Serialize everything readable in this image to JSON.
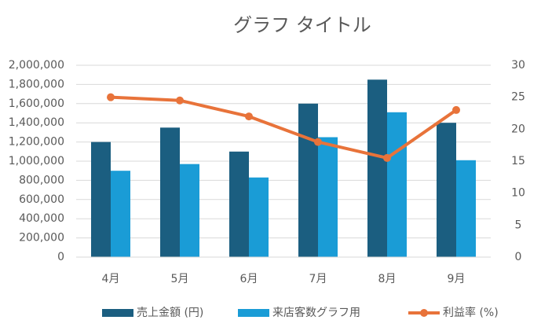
{
  "chart_data": {
    "type": "bar-line",
    "title": "グラフ タイトル",
    "categories": [
      "4月",
      "5月",
      "6月",
      "7月",
      "8月",
      "9月"
    ],
    "series": [
      {
        "name": "売上金額 (円)",
        "type": "bar",
        "color": "#1b5e80",
        "values": [
          1200000,
          1350000,
          1100000,
          1600000,
          1850000,
          1400000
        ]
      },
      {
        "name": "来店客数グラフ用",
        "type": "bar",
        "color": "#1a9cd6",
        "values": [
          900000,
          970000,
          830000,
          1250000,
          1510000,
          1010000
        ]
      },
      {
        "name": "利益率 (%)",
        "type": "line",
        "axis": "y2",
        "color": "#e8733a",
        "values": [
          25,
          24.5,
          22,
          18,
          15.5,
          23
        ]
      }
    ],
    "ylim": [
      0,
      2000000
    ],
    "yticks": [
      0,
      {
        "value": 200000,
        "label": "200,000"
      },
      {
        "value": 400000,
        "label": "400,000"
      },
      {
        "value": 600000,
        "label": "600,000"
      },
      {
        "value": 800000,
        "label": "800,000"
      },
      {
        "value": 1000000,
        "label": "1,000,000"
      },
      {
        "value": 1200000,
        "label": "1,200,000"
      },
      {
        "value": 1400000,
        "label": "1,400,000"
      },
      {
        "value": 1600000,
        "label": "1,600,000"
      },
      {
        "value": 1800000,
        "label": "1,800,000"
      },
      {
        "value": 2000000,
        "label": "2,000,000"
      }
    ],
    "y2lim": [
      0,
      30
    ],
    "y2ticks": [
      0,
      5,
      10,
      15,
      20,
      25,
      30
    ],
    "grid": true,
    "legend": "bottom"
  }
}
